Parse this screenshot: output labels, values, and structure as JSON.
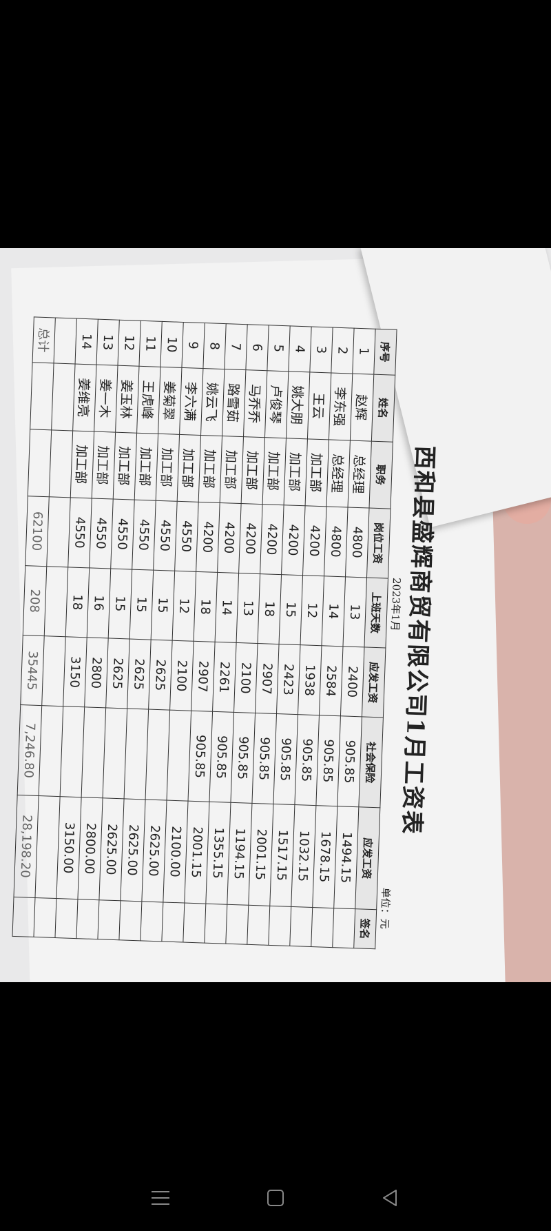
{
  "document": {
    "title": "西和县盛辉商贸有限公司1月工资表",
    "period": "2023年1月",
    "unit": "单位：元",
    "columns": [
      "序号",
      "姓名",
      "职务",
      "岗位工资",
      "上班天数",
      "应发工资",
      "社会保险",
      "应发工资",
      "签名"
    ],
    "rows": [
      [
        "1",
        "赵辉",
        "总经理",
        "4800",
        "13",
        "2400",
        "905.85",
        "1494.15",
        ""
      ],
      [
        "2",
        "李东强",
        "总经理",
        "4800",
        "14",
        "2584",
        "905.85",
        "1678.15",
        ""
      ],
      [
        "3",
        "王云",
        "加工部",
        "4200",
        "12",
        "1938",
        "905.85",
        "1032.15",
        ""
      ],
      [
        "4",
        "姚大朋",
        "加工部",
        "4200",
        "15",
        "2423",
        "905.85",
        "1517.15",
        ""
      ],
      [
        "5",
        "卢俊琴",
        "加工部",
        "4200",
        "18",
        "2907",
        "905.85",
        "2001.15",
        ""
      ],
      [
        "6",
        "马乔乔",
        "加工部",
        "4200",
        "13",
        "2100",
        "905.85",
        "1194.15",
        ""
      ],
      [
        "7",
        "路雪茹",
        "加工部",
        "4200",
        "14",
        "2261",
        "905.85",
        "1355.15",
        ""
      ],
      [
        "8",
        "姚云飞",
        "加工部",
        "4200",
        "18",
        "2907",
        "905.85",
        "2001.15",
        ""
      ],
      [
        "9",
        "李六满",
        "加工部",
        "4550",
        "12",
        "2100",
        "",
        "2100.00",
        ""
      ],
      [
        "10",
        "姜菊翠",
        "加工部",
        "4550",
        "15",
        "2625",
        "",
        "2625.00",
        ""
      ],
      [
        "11",
        "王虎峰",
        "加工部",
        "4550",
        "15",
        "2625",
        "",
        "2625.00",
        ""
      ],
      [
        "12",
        "姜玉林",
        "加工部",
        "4550",
        "15",
        "2625",
        "",
        "2625.00",
        ""
      ],
      [
        "13",
        "姜一木",
        "加工部",
        "4550",
        "16",
        "2800",
        "",
        "2800.00",
        ""
      ],
      [
        "14",
        "姜维亮",
        "加工部",
        "4550",
        "18",
        "3150",
        "",
        "3150.00",
        ""
      ],
      [
        "",
        "",
        "",
        "",
        "",
        "",
        "",
        "",
        ""
      ]
    ],
    "total": [
      "总计",
      "",
      "",
      "62100",
      "208",
      "35445",
      "7,246.80",
      "28,198.20",
      ""
    ]
  },
  "navbar": {
    "icons": [
      "menu-icon",
      "home-square-icon",
      "back-triangle-icon"
    ]
  }
}
